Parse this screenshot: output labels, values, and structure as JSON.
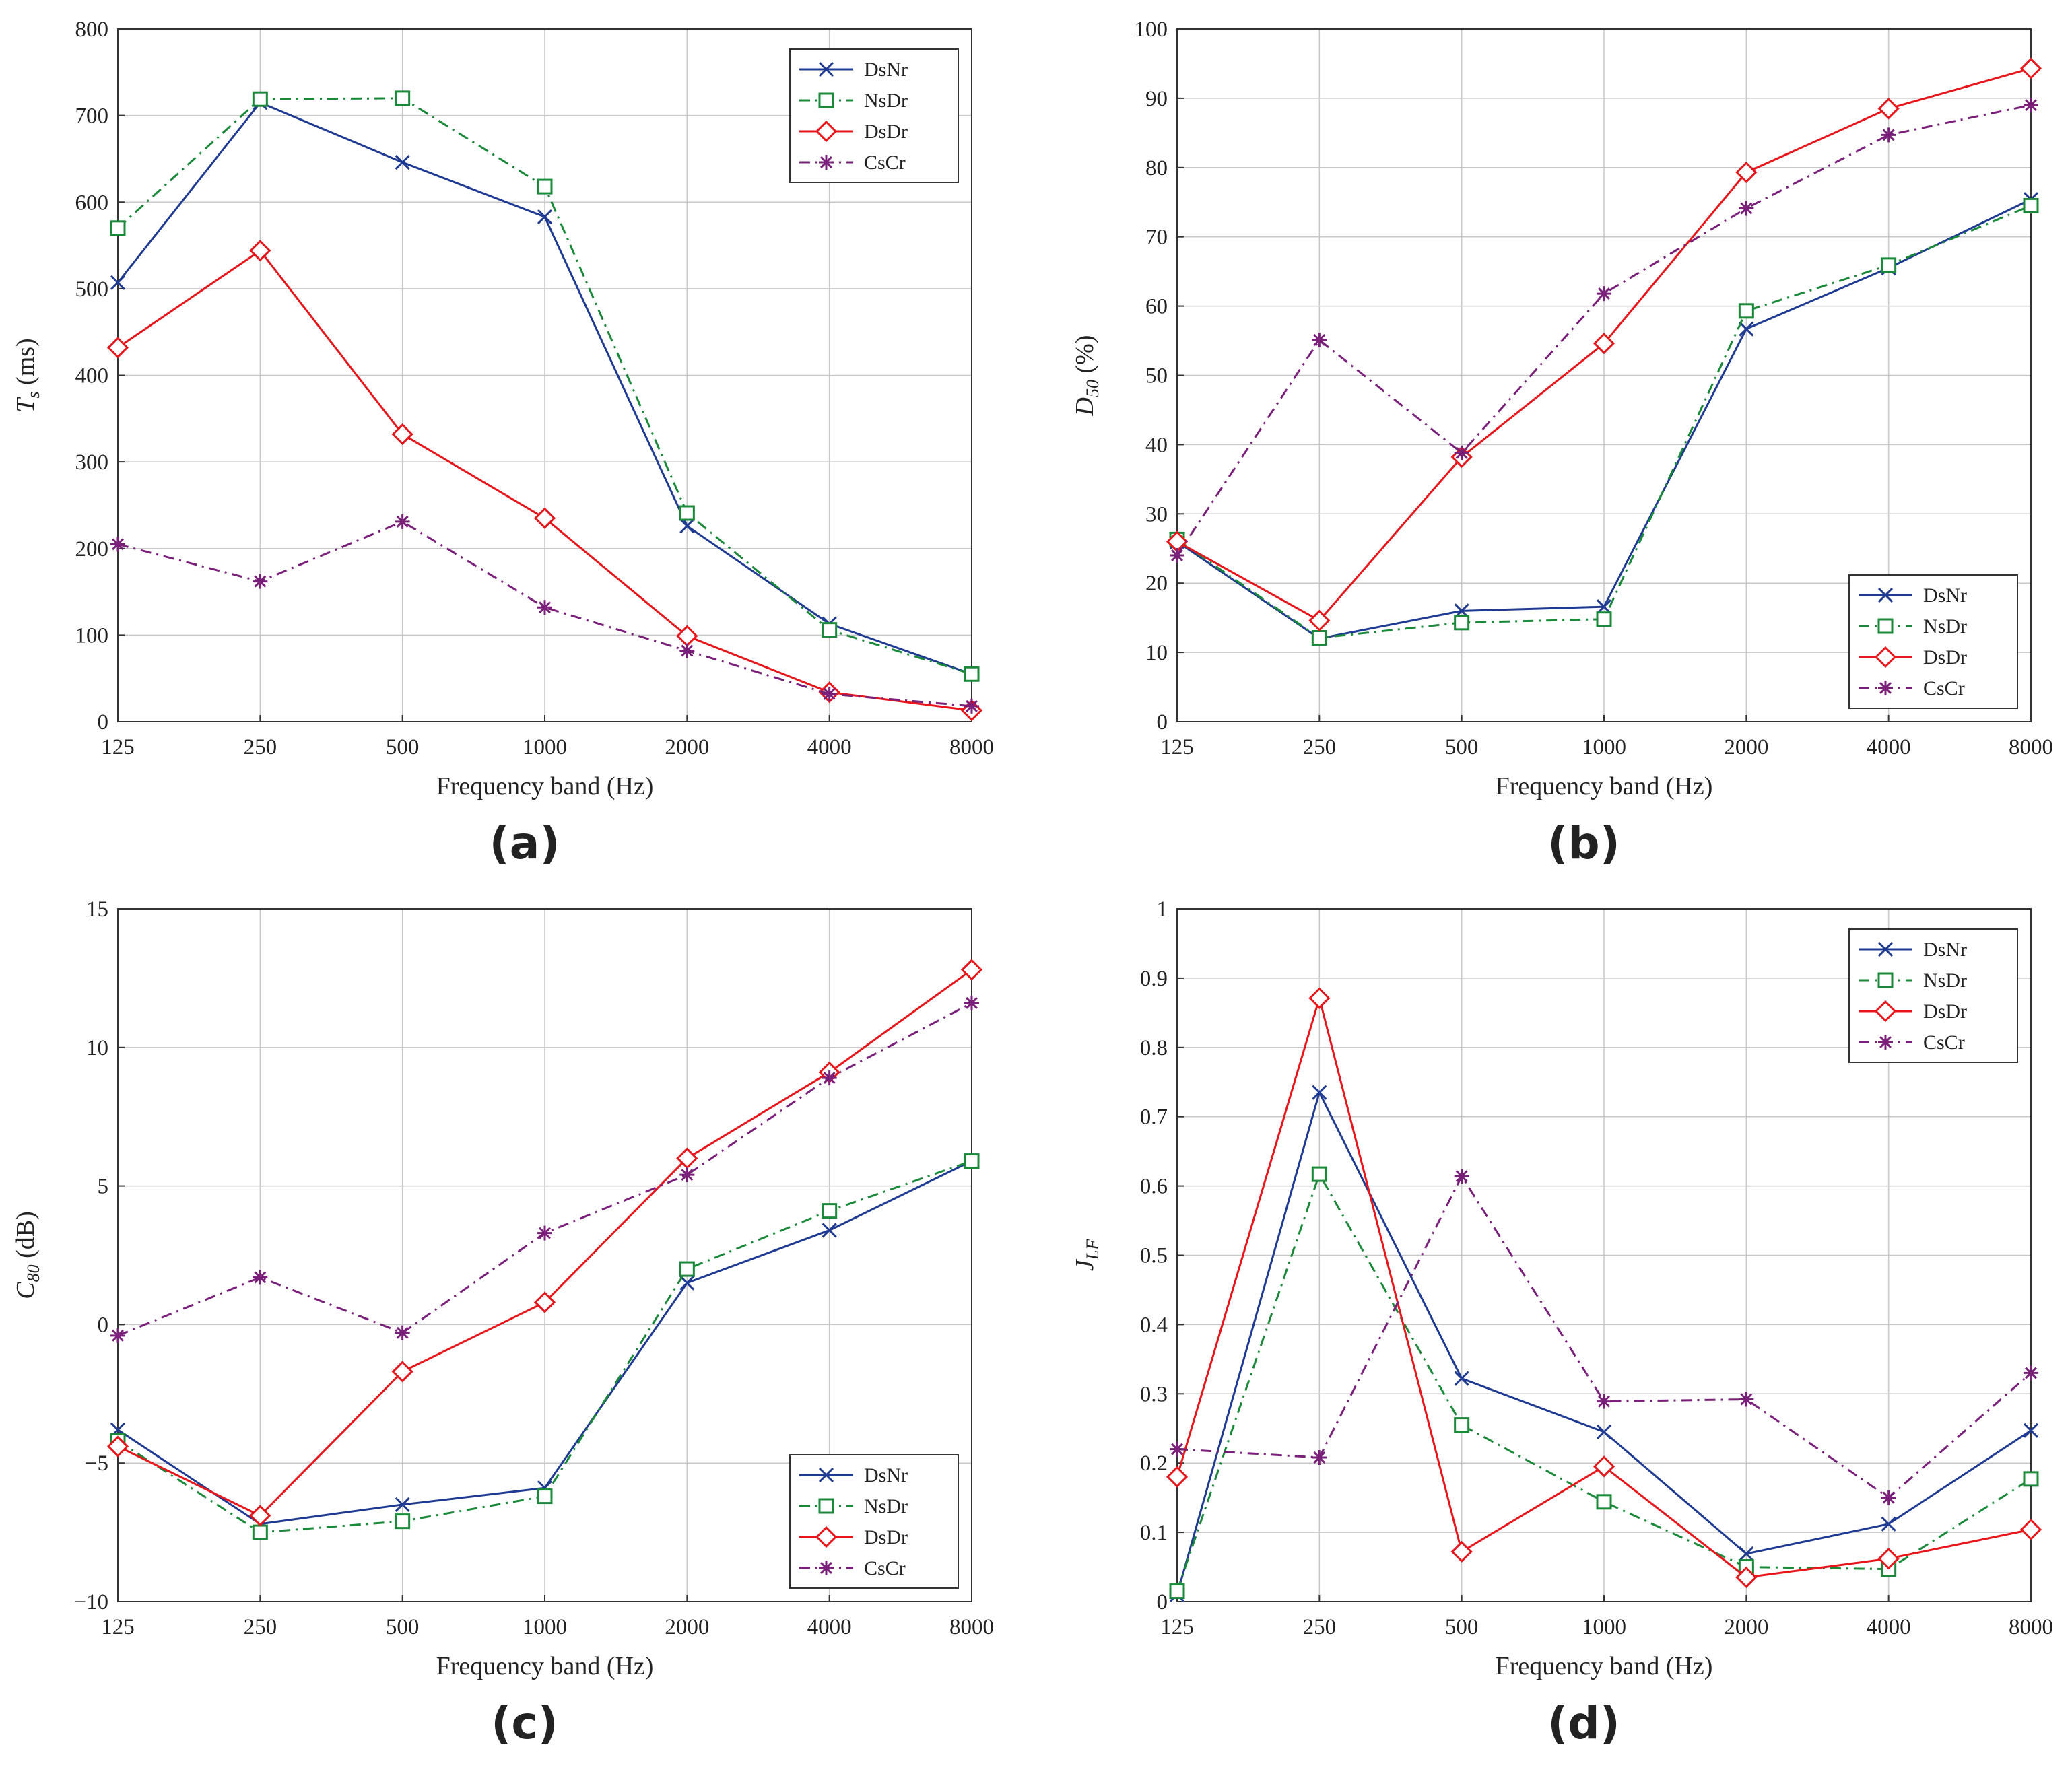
{
  "colors": {
    "DsNr": "#1f3a93",
    "NsDr": "#1a8a3a",
    "DsDr": "#e8161b",
    "CsCr": "#7a1f7a",
    "grid": "#c8c8c8",
    "axis": "#333333"
  },
  "chart_data": [
    {
      "id": "a",
      "type": "line",
      "panel_label": "(a)",
      "xlabel": "Frequency band (Hz)",
      "ylabel": "T_s (ms)",
      "ylabel_main": "T",
      "ylabel_sub": "s",
      "ylabel_unit": " (ms)",
      "categories": [
        "125",
        "250",
        "500",
        "1000",
        "2000",
        "4000",
        "8000"
      ],
      "ylim": [
        0,
        800
      ],
      "yticks": [
        0,
        100,
        200,
        300,
        400,
        500,
        600,
        700,
        800
      ],
      "ytick_labels": [
        "0",
        "100",
        "200",
        "300",
        "400",
        "500",
        "600",
        "700",
        "800"
      ],
      "legend_position": "top-right",
      "series": [
        {
          "name": "DsNr",
          "marker": "x",
          "dash": "solid",
          "values": [
            507,
            715,
            646,
            583,
            226,
            113,
            55
          ]
        },
        {
          "name": "NsDr",
          "marker": "square",
          "dash": "dashdot",
          "values": [
            570,
            719,
            720,
            618,
            241,
            106,
            55
          ]
        },
        {
          "name": "DsDr",
          "marker": "diamond",
          "dash": "solid",
          "values": [
            432,
            544,
            332,
            235,
            99,
            34,
            13
          ]
        },
        {
          "name": "CsCr",
          "marker": "star",
          "dash": "dashdot",
          "values": [
            205,
            162,
            231,
            132,
            82,
            32,
            18
          ]
        }
      ]
    },
    {
      "id": "b",
      "type": "line",
      "panel_label": "(b)",
      "xlabel": "Frequency band (Hz)",
      "ylabel": "D_50 (%)",
      "ylabel_main": "D",
      "ylabel_sub": "50",
      "ylabel_unit": " (%)",
      "categories": [
        "125",
        "250",
        "500",
        "1000",
        "2000",
        "4000",
        "8000"
      ],
      "ylim": [
        0,
        100
      ],
      "yticks": [
        0,
        10,
        20,
        30,
        40,
        50,
        60,
        70,
        80,
        90,
        100
      ],
      "ytick_labels": [
        "0",
        "10",
        "20",
        "30",
        "40",
        "50",
        "60",
        "70",
        "80",
        "90",
        "100"
      ],
      "legend_position": "bottom-right",
      "series": [
        {
          "name": "DsNr",
          "marker": "x",
          "dash": "solid",
          "values": [
            26,
            12,
            16,
            16.6,
            56.7,
            65.5,
            75.4
          ]
        },
        {
          "name": "NsDr",
          "marker": "square",
          "dash": "dashdot",
          "values": [
            26.3,
            12.1,
            14.3,
            14.8,
            59.3,
            65.9,
            74.5
          ]
        },
        {
          "name": "DsDr",
          "marker": "diamond",
          "dash": "solid",
          "values": [
            26,
            14.6,
            38.2,
            54.6,
            79.3,
            88.5,
            94.3
          ]
        },
        {
          "name": "CsCr",
          "marker": "star",
          "dash": "dashdot",
          "values": [
            24,
            55.1,
            38.8,
            61.8,
            74.1,
            84.7,
            89
          ]
        }
      ]
    },
    {
      "id": "c",
      "type": "line",
      "panel_label": "(c)",
      "xlabel": "Frequency band (Hz)",
      "ylabel": "C_80 (dB)",
      "ylabel_main": "C",
      "ylabel_sub": "80",
      "ylabel_unit": " (dB)",
      "categories": [
        "125",
        "250",
        "500",
        "1000",
        "2000",
        "4000",
        "8000"
      ],
      "ylim": [
        -10,
        15
      ],
      "yticks": [
        -10,
        -5,
        0,
        5,
        10,
        15
      ],
      "ytick_labels": [
        "−10",
        "−5",
        "0",
        "5",
        "10",
        "15"
      ],
      "legend_position": "bottom-right",
      "series": [
        {
          "name": "DsNr",
          "marker": "x",
          "dash": "solid",
          "values": [
            -3.8,
            -7.2,
            -6.5,
            -5.9,
            1.5,
            3.4,
            5.9
          ]
        },
        {
          "name": "NsDr",
          "marker": "square",
          "dash": "dashdot",
          "values": [
            -4.2,
            -7.5,
            -7.1,
            -6.2,
            2.0,
            4.1,
            5.9
          ]
        },
        {
          "name": "DsDr",
          "marker": "diamond",
          "dash": "solid",
          "values": [
            -4.4,
            -6.9,
            -1.7,
            0.8,
            6.0,
            9.1,
            12.8
          ]
        },
        {
          "name": "CsCr",
          "marker": "star",
          "dash": "dashdot",
          "values": [
            -0.4,
            1.7,
            -0.3,
            3.3,
            5.4,
            8.9,
            11.6
          ]
        }
      ]
    },
    {
      "id": "d",
      "type": "line",
      "panel_label": "(d)",
      "xlabel": "Frequency band (Hz)",
      "ylabel": "J_LF",
      "ylabel_main": "J",
      "ylabel_sub": "LF",
      "ylabel_unit": "",
      "categories": [
        "125",
        "250",
        "500",
        "1000",
        "2000",
        "4000",
        "8000"
      ],
      "ylim": [
        0,
        1
      ],
      "yticks": [
        0,
        0.1,
        0.2,
        0.3,
        0.4,
        0.5,
        0.6,
        0.7,
        0.8,
        0.9,
        1
      ],
      "ytick_labels": [
        "0",
        "0.1",
        "0.2",
        "0.3",
        "0.4",
        "0.5",
        "0.6",
        "0.7",
        "0.8",
        "0.9",
        "1"
      ],
      "legend_position": "top-right",
      "series": [
        {
          "name": "DsNr",
          "marker": "x",
          "dash": "solid",
          "values": [
            0.01,
            0.735,
            0.322,
            0.245,
            0.069,
            0.112,
            0.247
          ]
        },
        {
          "name": "NsDr",
          "marker": "square",
          "dash": "dashdot",
          "values": [
            0.015,
            0.617,
            0.255,
            0.144,
            0.05,
            0.047,
            0.177
          ]
        },
        {
          "name": "DsDr",
          "marker": "diamond",
          "dash": "solid",
          "values": [
            0.18,
            0.871,
            0.072,
            0.195,
            0.035,
            0.062,
            0.104
          ]
        },
        {
          "name": "CsCr",
          "marker": "star",
          "dash": "dashdot",
          "values": [
            0.22,
            0.208,
            0.614,
            0.289,
            0.292,
            0.15,
            0.33
          ]
        }
      ]
    }
  ]
}
